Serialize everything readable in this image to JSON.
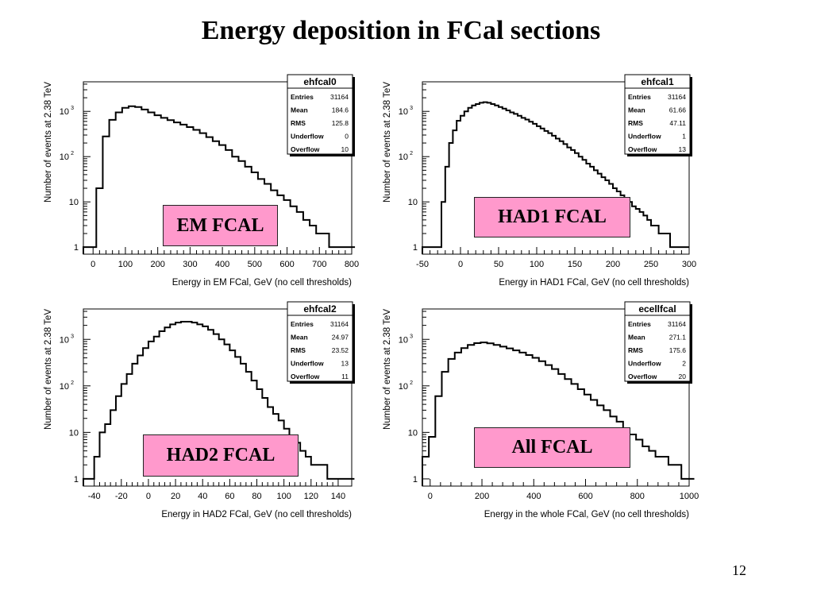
{
  "slide": {
    "title": "Energy deposition in FCal sections",
    "page_number": "12"
  },
  "chart_data": [
    {
      "type": "histogram",
      "name": "ehfcal0",
      "label": "EM FCAL",
      "xlabel": "Energy in EM FCal, GeV (no cell thresholds)",
      "ylabel": "Number of events at 2.38 TeV",
      "yscale": "log",
      "xlim": [
        -30,
        800
      ],
      "ylim": [
        0.7,
        4500
      ],
      "xticks": [
        0,
        100,
        200,
        300,
        400,
        500,
        600,
        700,
        800
      ],
      "yticks": [
        1,
        10,
        100,
        1000
      ],
      "stats": [
        {
          "key": "Entries",
          "value": "31164"
        },
        {
          "key": "Mean",
          "value": "184.6"
        },
        {
          "key": "RMS",
          "value": "125.8"
        },
        {
          "key": "Underflow",
          "value": "0"
        },
        {
          "key": "Overflow",
          "value": "10"
        }
      ],
      "x": [
        -30,
        -10,
        10,
        30,
        50,
        70,
        90,
        110,
        130,
        150,
        170,
        190,
        210,
        230,
        250,
        270,
        290,
        310,
        330,
        350,
        370,
        390,
        410,
        430,
        450,
        470,
        490,
        510,
        530,
        550,
        570,
        590,
        610,
        630,
        650,
        670,
        690,
        710,
        730,
        750,
        770,
        790
      ],
      "values": [
        1,
        1,
        20,
        280,
        650,
        950,
        1200,
        1300,
        1250,
        1100,
        950,
        820,
        720,
        640,
        570,
        510,
        450,
        390,
        330,
        270,
        220,
        180,
        140,
        100,
        80,
        60,
        45,
        32,
        25,
        18,
        14,
        11,
        8,
        6,
        4,
        3,
        2,
        2,
        1,
        1,
        1,
        1
      ]
    },
    {
      "type": "histogram",
      "name": "ehfcal1",
      "label": "HAD1 FCAL",
      "xlabel": "Energy in HAD1 FCal, GeV (no cell thresholds)",
      "ylabel": "Number of events at 2.38 TeV",
      "yscale": "log",
      "xlim": [
        -50,
        300
      ],
      "ylim": [
        0.7,
        4500
      ],
      "xticks": [
        -50,
        0,
        50,
        100,
        150,
        200,
        250,
        300
      ],
      "yticks": [
        1,
        10,
        100,
        1000
      ],
      "stats": [
        {
          "key": "Entries",
          "value": "31164"
        },
        {
          "key": "Mean",
          "value": "61.66"
        },
        {
          "key": "RMS",
          "value": "47.11"
        },
        {
          "key": "Underflow",
          "value": "1"
        },
        {
          "key": "Overflow",
          "value": "13"
        }
      ],
      "x": [
        -50,
        -45,
        -40,
        -35,
        -30,
        -25,
        -20,
        -15,
        -10,
        -5,
        0,
        5,
        10,
        15,
        20,
        25,
        30,
        35,
        40,
        45,
        50,
        55,
        60,
        65,
        70,
        75,
        80,
        85,
        90,
        95,
        100,
        105,
        110,
        115,
        120,
        125,
        130,
        135,
        140,
        145,
        150,
        155,
        160,
        165,
        170,
        175,
        180,
        185,
        190,
        195,
        200,
        205,
        210,
        215,
        220,
        225,
        230,
        235,
        240,
        245,
        250,
        255,
        260,
        265,
        270,
        275,
        280,
        285,
        290,
        295
      ],
      "values": [
        1,
        1,
        1,
        1,
        1,
        10,
        60,
        200,
        380,
        620,
        800,
        1000,
        1200,
        1350,
        1450,
        1550,
        1600,
        1550,
        1450,
        1350,
        1250,
        1150,
        1050,
        950,
        880,
        800,
        720,
        660,
        590,
        530,
        470,
        420,
        370,
        330,
        290,
        250,
        220,
        190,
        160,
        140,
        120,
        100,
        85,
        70,
        60,
        50,
        42,
        35,
        30,
        25,
        20,
        17,
        14,
        12,
        10,
        8,
        7,
        6,
        5,
        4,
        3,
        3,
        2,
        2,
        2,
        1,
        1,
        1,
        1,
        1
      ]
    },
    {
      "type": "histogram",
      "name": "ehfcal2",
      "label": "HAD2 FCAL",
      "xlabel": "Energy in HAD2 FCal, GeV (no cell thresholds)",
      "ylabel": "Number of events at 2.38 TeV",
      "yscale": "log",
      "xlim": [
        -48,
        150
      ],
      "ylim": [
        0.7,
        4500
      ],
      "xticks": [
        -40,
        -20,
        0,
        20,
        40,
        60,
        80,
        100,
        120,
        140
      ],
      "yticks": [
        1,
        10,
        100,
        1000
      ],
      "stats": [
        {
          "key": "Entries",
          "value": "31164"
        },
        {
          "key": "Mean",
          "value": "24.97"
        },
        {
          "key": "RMS",
          "value": "23.52"
        },
        {
          "key": "Underflow",
          "value": "13"
        },
        {
          "key": "Overflow",
          "value": "11"
        }
      ],
      "x": [
        -48,
        -44,
        -40,
        -36,
        -32,
        -28,
        -24,
        -20,
        -16,
        -12,
        -8,
        -4,
        0,
        4,
        8,
        12,
        16,
        20,
        24,
        28,
        32,
        36,
        40,
        44,
        48,
        52,
        56,
        60,
        64,
        68,
        72,
        76,
        80,
        84,
        88,
        92,
        96,
        100,
        104,
        108,
        112,
        116,
        120,
        124,
        128,
        132,
        136,
        140,
        144,
        148
      ],
      "values": [
        1,
        1,
        3,
        10,
        15,
        30,
        60,
        110,
        180,
        300,
        450,
        650,
        900,
        1150,
        1500,
        1800,
        2100,
        2300,
        2400,
        2400,
        2300,
        2100,
        1900,
        1600,
        1300,
        1000,
        780,
        580,
        420,
        300,
        200,
        130,
        85,
        55,
        35,
        25,
        18,
        12,
        8,
        6,
        4,
        3,
        2,
        2,
        2,
        1,
        1,
        1,
        1,
        1
      ]
    },
    {
      "type": "histogram",
      "name": "ecellfcal",
      "label": "All FCAL",
      "xlabel": "Energy in the whole FCal, GeV (no cell thresholds)",
      "ylabel": "Number of events at 2.38 TeV",
      "yscale": "log",
      "xlim": [
        -30,
        1000
      ],
      "ylim": [
        0.7,
        4500
      ],
      "xticks": [
        0,
        200,
        400,
        600,
        800,
        1000
      ],
      "yticks": [
        1,
        10,
        100,
        1000
      ],
      "stats": [
        {
          "key": "Entries",
          "value": "31164"
        },
        {
          "key": "Mean",
          "value": "271.1"
        },
        {
          "key": "RMS",
          "value": "175.6"
        },
        {
          "key": "Underflow",
          "value": "2"
        },
        {
          "key": "Overflow",
          "value": "20"
        }
      ],
      "x": [
        -30,
        -5,
        20,
        45,
        70,
        95,
        120,
        145,
        170,
        195,
        220,
        245,
        270,
        295,
        320,
        345,
        370,
        395,
        420,
        445,
        470,
        495,
        520,
        545,
        570,
        595,
        620,
        645,
        670,
        695,
        720,
        745,
        770,
        795,
        820,
        845,
        870,
        895,
        920,
        945,
        970,
        995
      ],
      "values": [
        3,
        8,
        60,
        200,
        380,
        520,
        650,
        760,
        830,
        860,
        820,
        760,
        700,
        640,
        580,
        520,
        460,
        400,
        340,
        280,
        230,
        180,
        140,
        110,
        85,
        65,
        50,
        38,
        30,
        22,
        17,
        12,
        9,
        7,
        5,
        4,
        3,
        3,
        2,
        2,
        1,
        1
      ]
    }
  ]
}
